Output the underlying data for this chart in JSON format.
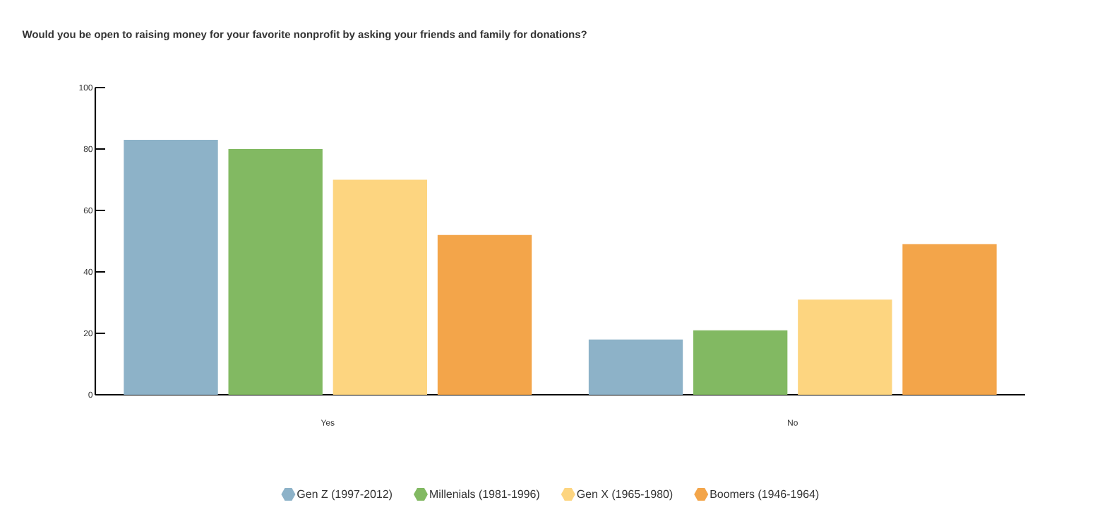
{
  "chart_data": {
    "type": "bar",
    "title": "Would you be open to raising money for your favorite nonprofit by asking your friends and family for donations?",
    "categories": [
      "Yes",
      "No"
    ],
    "series": [
      {
        "name": "Gen Z (1997-2012)",
        "color": "#8db2c8",
        "values": [
          83,
          18
        ]
      },
      {
        "name": "Millenials (1981-1996)",
        "color": "#82b962",
        "values": [
          80,
          21
        ]
      },
      {
        "name": "Gen X (1965-1980)",
        "color": "#fdd580",
        "values": [
          70,
          31
        ]
      },
      {
        "name": "Boomers (1946-1964)",
        "color": "#f3a54a",
        "values": [
          52,
          49
        ]
      }
    ],
    "ylim": [
      0,
      100
    ],
    "yticks": [
      0,
      20,
      40,
      60,
      80,
      100
    ],
    "grid": false,
    "legend": "bottom"
  }
}
